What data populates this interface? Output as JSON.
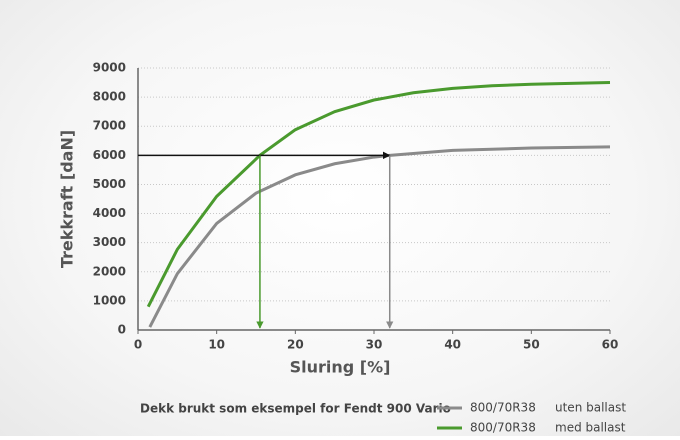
{
  "chart_data": {
    "type": "line",
    "xlabel": "Sluring [%]",
    "ylabel": "Trekkraft [daN]",
    "caption": "Dekk brukt som eksempel for Fendt 900 Vario",
    "xlim": [
      0,
      60
    ],
    "xticks": [
      0,
      10,
      20,
      30,
      40,
      50,
      60
    ],
    "ylim": [
      0,
      9000
    ],
    "yticks": [
      0,
      1000,
      2000,
      3000,
      4000,
      5000,
      6000,
      7000,
      8000,
      9000
    ],
    "grid": true,
    "series": [
      {
        "name": "800/70R38",
        "label": "uten ballast",
        "color": "#8a8a8a",
        "x": [
          1.5,
          5,
          10,
          15,
          20,
          25,
          30,
          32,
          40,
          50,
          60
        ],
        "values": [
          100,
          1935,
          3660,
          4700,
          5330,
          5710,
          5940,
          6000,
          6170,
          6250,
          6290
        ]
      },
      {
        "name": "800/70R38",
        "label": "med ballast",
        "color": "#4a9a2e",
        "x": [
          1.3,
          5,
          10,
          15.5,
          20,
          25,
          30,
          35,
          40,
          45,
          50,
          55,
          60
        ],
        "values": [
          800,
          2770,
          4590,
          6000,
          6880,
          7500,
          7900,
          8150,
          8300,
          8390,
          8440,
          8470,
          8500
        ]
      }
    ],
    "reference": {
      "y": 6000,
      "color": "#111111",
      "drops": [
        {
          "x": 15.5,
          "color": "#4a9a2e"
        },
        {
          "x": 32,
          "color": "#8a8a8a"
        }
      ]
    }
  }
}
